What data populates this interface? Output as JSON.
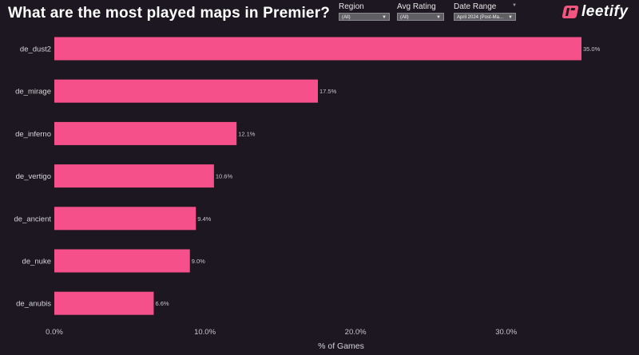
{
  "header": {
    "title": "What are the most played maps in Premier?",
    "logo_text": "leetify"
  },
  "filters": [
    {
      "label": "Region",
      "value": "(All)"
    },
    {
      "label": "Avg Rating",
      "value": "(All)"
    },
    {
      "label": "Date Range",
      "value": "April 2024 (Post-Ma..."
    }
  ],
  "icons": {
    "dropdown": "dropdown-arrow-icon",
    "logo": "leetify-logo-icon"
  },
  "colors": {
    "bar": "#f5508a",
    "background": "#1c1720"
  },
  "chart_data": {
    "type": "bar",
    "orientation": "horizontal",
    "title": "What are the most played maps in Premier?",
    "xlabel": "% of Games",
    "ylabel": "",
    "categories": [
      "de_dust2",
      "de_mirage",
      "de_inferno",
      "de_vertigo",
      "de_ancient",
      "de_nuke",
      "de_anubis"
    ],
    "values": [
      35.0,
      17.5,
      12.1,
      10.6,
      9.4,
      9.0,
      6.6
    ],
    "value_labels": [
      "35.0%",
      "17.5%",
      "12.1%",
      "10.6%",
      "9.4%",
      "9.0%",
      "6.6%"
    ],
    "xlim": [
      0,
      35
    ],
    "xticks": [
      0,
      10,
      20,
      30
    ],
    "xtick_labels": [
      "0.0%",
      "10.0%",
      "20.0%",
      "30.0%"
    ],
    "grid": false,
    "legend": "none"
  }
}
